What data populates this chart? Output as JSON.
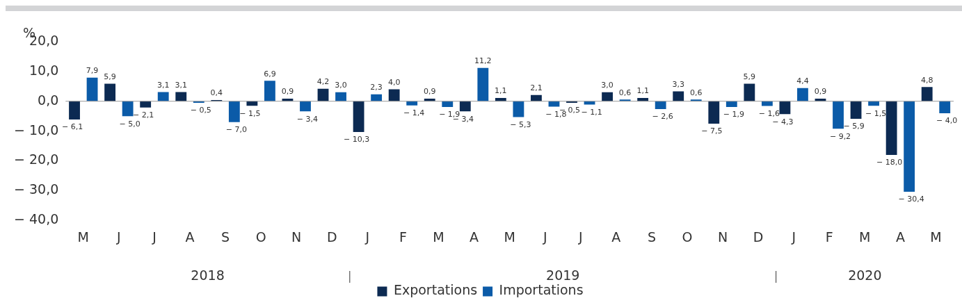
{
  "chart_data": {
    "type": "bar",
    "ylabel": "%",
    "categories": [
      "M",
      "J",
      "J",
      "A",
      "S",
      "O",
      "N",
      "D",
      "J",
      "F",
      "M",
      "A",
      "M",
      "J",
      "J",
      "A",
      "S",
      "O",
      "N",
      "D",
      "J",
      "F",
      "M",
      "A",
      "M"
    ],
    "series": [
      {
        "name": "Exportations",
        "color": "#0c2a52",
        "values": [
          -6.1,
          5.9,
          -2.1,
          3.1,
          0.4,
          -1.5,
          0.9,
          4.2,
          -10.3,
          4.0,
          0.9,
          -3.4,
          1.1,
          2.1,
          -0.5,
          3.0,
          1.1,
          3.3,
          -7.5,
          5.9,
          -4.3,
          0.9,
          -5.9,
          -18.0,
          4.8
        ],
        "value_labels": [
          "− 6,1",
          "5,9",
          "− 2,1",
          "3,1",
          "0,4",
          "− 1,5",
          "0,9",
          "4,2",
          "− 10,3",
          "4,0",
          "0,9",
          "− 3,4",
          "1,1",
          "2,1",
          "− 0,5",
          "3,0",
          "1,1",
          "3,3",
          "− 7,5",
          "5,9",
          "− 4,3",
          "0,9",
          "− 5,9",
          "− 18,0",
          "4,8"
        ]
      },
      {
        "name": "Importations",
        "color": "#0b5ba8",
        "values": [
          7.9,
          -5.0,
          3.1,
          -0.5,
          -7.0,
          6.9,
          -3.4,
          3.0,
          2.3,
          -1.4,
          -1.9,
          11.2,
          -5.3,
          -1.8,
          -1.1,
          0.6,
          -2.6,
          0.6,
          -1.9,
          -1.6,
          4.4,
          -9.2,
          -1.5,
          -30.4,
          -4.0
        ],
        "value_labels": [
          "7,9",
          "− 5,0",
          "3,1",
          "− 0,5",
          "− 7,0",
          "6,9",
          "− 3,4",
          "3,0",
          "2,3",
          "− 1,4",
          "− 1,9",
          "11,2",
          "− 5,3",
          "− 1,8",
          "− 1,1",
          "0,6",
          "− 2,6",
          "0,6",
          "− 1,9",
          "− 1,6",
          "4,4",
          "− 9,2",
          "− 1,5",
          "− 30,4",
          "− 4,0"
        ]
      }
    ],
    "ylim": [
      -40,
      20
    ],
    "yticks": [
      {
        "value": -40,
        "label": "− 40,0"
      },
      {
        "value": -30,
        "label": "− 30,0"
      },
      {
        "value": -20,
        "label": "− 20,0"
      },
      {
        "value": -10,
        "label": "− 10,0"
      },
      {
        "value": 0,
        "label": "0,0"
      },
      {
        "value": 10,
        "label": "10,0"
      },
      {
        "value": 20,
        "label": "20,0"
      }
    ],
    "ref_lines": [
      {
        "axis": "y",
        "value": 0,
        "color": "#999999"
      }
    ],
    "annotations": [
      "2018",
      "2019",
      "2020"
    ],
    "grid": false,
    "legend": "bottom"
  }
}
